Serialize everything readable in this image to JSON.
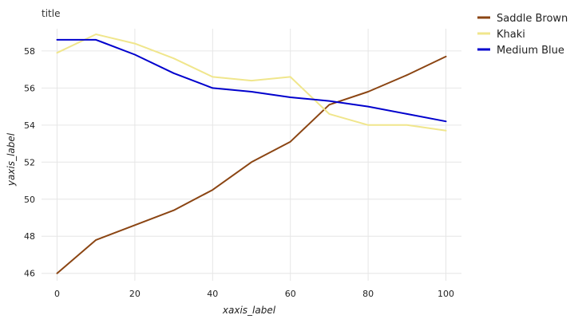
{
  "chart_data": {
    "type": "line",
    "title": "title",
    "xlabel": "xaxis_label",
    "ylabel": "yaxis_label",
    "xlim": [
      -4,
      104
    ],
    "ylim": [
      45.6,
      59.2
    ],
    "xticks": [
      0,
      20,
      40,
      60,
      80,
      100
    ],
    "yticks": [
      46,
      48,
      50,
      52,
      54,
      56,
      58
    ],
    "grid": true,
    "legend_position": "right",
    "series": [
      {
        "name": "Saddle Brown",
        "color": "#8B4513",
        "x": [
          0,
          10,
          20,
          30,
          40,
          50,
          60,
          70,
          80,
          90,
          100
        ],
        "y": [
          46.0,
          47.8,
          48.6,
          49.4,
          50.5,
          52.0,
          53.1,
          55.1,
          55.8,
          56.7,
          57.7
        ]
      },
      {
        "name": "Khaki",
        "color": "#F0E68C",
        "x": [
          0,
          10,
          20,
          30,
          40,
          50,
          60,
          70,
          80,
          90,
          100
        ],
        "y": [
          57.9,
          58.9,
          58.4,
          57.6,
          56.6,
          56.4,
          56.6,
          54.6,
          54.0,
          54.0,
          53.7
        ]
      },
      {
        "name": "Medium Blue",
        "color": "#0000CD",
        "x": [
          0,
          10,
          20,
          30,
          40,
          50,
          60,
          70,
          80,
          90,
          100
        ],
        "y": [
          58.6,
          58.6,
          57.8,
          56.8,
          56.0,
          55.8,
          55.5,
          55.3,
          55.0,
          54.6,
          54.2
        ]
      }
    ]
  }
}
